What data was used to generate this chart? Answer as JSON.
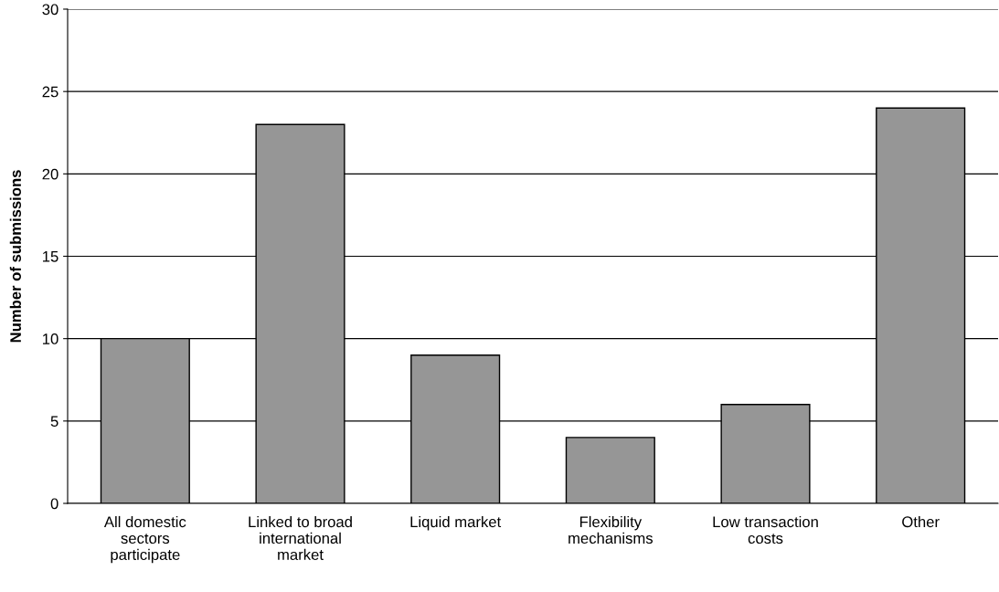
{
  "chart_data": {
    "type": "bar",
    "ylabel": "Number of submissions",
    "categories": [
      "All domestic sectors participate",
      "Linked to broad international market",
      "Liquid market",
      "Flexibility mechanisms",
      "Low transaction costs",
      "Other"
    ],
    "values": [
      10,
      23,
      9,
      4,
      6,
      24
    ],
    "color": "#969696",
    "ylim": [
      0,
      30
    ],
    "yticks": [
      0,
      5,
      10,
      15,
      20,
      25,
      30
    ],
    "grid": "y",
    "legend": false
  }
}
